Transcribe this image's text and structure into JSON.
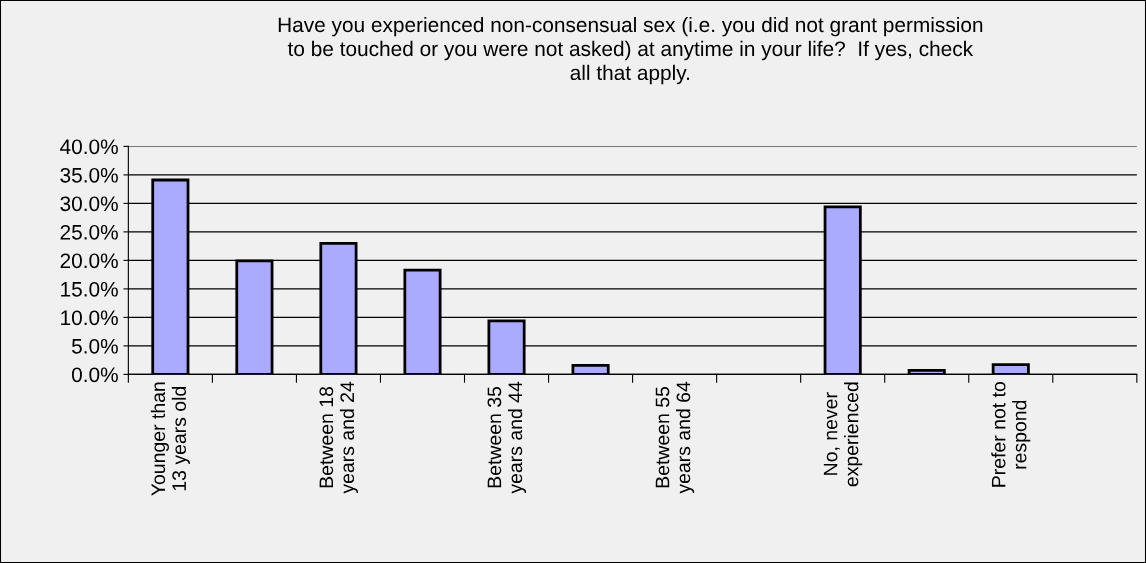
{
  "chart_data": {
    "type": "bar",
    "title": "Have you experienced non-consensual sex (i.e. you did not grant permission\nto be touched or you were not asked) at anytime in your life?  If yes, check\nall that apply.",
    "categories": [
      "Younger than\n13 years old",
      null,
      "Between 18\nyears and 24",
      null,
      "Between 35\nyears and 44",
      null,
      "Between 55\nyears and 64",
      null,
      "No, never\nexperienced",
      null,
      "Prefer not to\nrespond",
      null
    ],
    "values": [
      34.1,
      19.9,
      23.0,
      18.3,
      9.4,
      1.6,
      0,
      0,
      29.4,
      0.7,
      1.7,
      0
    ],
    "color": "#aaaaff",
    "ylim": [
      0,
      40
    ],
    "yticks": [
      {
        "value": 0,
        "label": "0.0%"
      },
      {
        "value": 5,
        "label": "5.0%"
      },
      {
        "value": 10,
        "label": "10.0%"
      },
      {
        "value": 15,
        "label": "15.0%"
      },
      {
        "value": 20,
        "label": "20.0%"
      },
      {
        "value": 25,
        "label": "25.0%"
      },
      {
        "value": 30,
        "label": "30.0%"
      },
      {
        "value": 35,
        "label": "35.0%"
      },
      {
        "value": 40,
        "label": "40.0%"
      }
    ],
    "grid": "y"
  }
}
